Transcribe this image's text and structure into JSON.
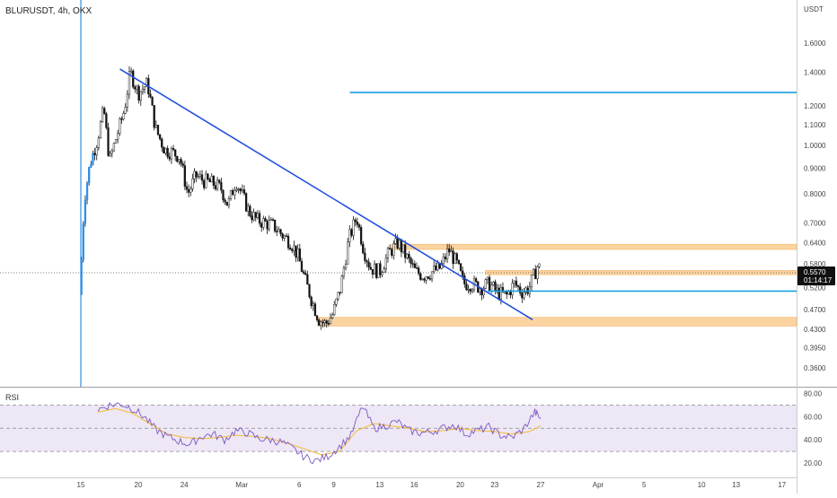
{
  "header": {
    "symbol_line": "BLURUSDT, 4h, OKX"
  },
  "colors": {
    "up": "#ffffff",
    "down": "#111111",
    "wick": "#111111",
    "candle_border": "#222222",
    "spike": "#2f8fe6",
    "trendline": "#2450e0",
    "hline": "#1aa0e0",
    "zone": "#fbd3a0",
    "zone_border": "#f5b766",
    "rsi_line": "#7e57c2",
    "rsi_ma": "#f0c040",
    "rsi_band": "#ede7f6",
    "price_tag_bg": "#111111",
    "price_tag_fg": "#ffffff"
  },
  "chart_data": [
    {
      "type": "candlestick",
      "title": "BLURUSDT, 4h, OKX",
      "price_axis_unit": "USDT",
      "y_scale": "log",
      "ylim": [
        0.33,
        1.95
      ],
      "y_tick_labels": [
        "1.6000",
        "1.4000",
        "1.2000",
        "1.1000",
        "1.0000",
        "0.9000",
        "0.8000",
        "0.7000",
        "0.6400",
        "0.5800",
        "0.5200",
        "0.4700",
        "0.4300",
        "0.3950",
        "0.3600"
      ],
      "x_tick_labels": [
        "15",
        "20",
        "24",
        "Mar",
        "6",
        "9",
        "13",
        "16",
        "20",
        "23",
        "27",
        "Apr",
        "5",
        "10",
        "13",
        "17"
      ],
      "x_ticks": [
        {
          "label": "15",
          "d": 0
        },
        {
          "label": "20",
          "d": 5
        },
        {
          "label": "24",
          "d": 9
        },
        {
          "label": "Mar",
          "d": 14
        },
        {
          "label": "6",
          "d": 19
        },
        {
          "label": "9",
          "d": 22
        },
        {
          "label": "13",
          "d": 26
        },
        {
          "label": "16",
          "d": 29
        },
        {
          "label": "20",
          "d": 33
        },
        {
          "label": "23",
          "d": 36
        },
        {
          "label": "27",
          "d": 40
        },
        {
          "label": "Apr",
          "d": 45
        },
        {
          "label": "5",
          "d": 49
        },
        {
          "label": "10",
          "d": 54
        },
        {
          "label": "13",
          "d": 57
        },
        {
          "label": "17",
          "d": 61
        }
      ],
      "current_price": {
        "value": "0.5570",
        "countdown": "01:14:17"
      },
      "series": {
        "close_path": [
          [
            0.0,
            0.56
          ],
          [
            0.3,
            0.78
          ],
          [
            0.8,
            0.92
          ],
          [
            1.4,
            1.02
          ],
          [
            2.0,
            1.18
          ],
          [
            2.5,
            0.93
          ],
          [
            3.2,
            1.06
          ],
          [
            3.8,
            1.18
          ],
          [
            4.3,
            1.4
          ],
          [
            5.0,
            1.27
          ],
          [
            5.8,
            1.33
          ],
          [
            6.5,
            1.08
          ],
          [
            7.3,
            0.98
          ],
          [
            7.9,
            0.97
          ],
          [
            8.6,
            0.95
          ],
          [
            9.3,
            0.8
          ],
          [
            10.0,
            0.87
          ],
          [
            10.7,
            0.85
          ],
          [
            11.5,
            0.84
          ],
          [
            12.2,
            0.82
          ],
          [
            12.8,
            0.76
          ],
          [
            13.5,
            0.85
          ],
          [
            14.0,
            0.8
          ],
          [
            14.6,
            0.74
          ],
          [
            15.3,
            0.71
          ],
          [
            16.1,
            0.7
          ],
          [
            16.8,
            0.69
          ],
          [
            17.6,
            0.66
          ],
          [
            18.3,
            0.64
          ],
          [
            18.9,
            0.6
          ],
          [
            19.5,
            0.54
          ],
          [
            20.1,
            0.49
          ],
          [
            20.7,
            0.45
          ],
          [
            21.3,
            0.44
          ],
          [
            21.9,
            0.46
          ],
          [
            22.6,
            0.52
          ],
          [
            23.3,
            0.65
          ],
          [
            24.0,
            0.72
          ],
          [
            24.6,
            0.62
          ],
          [
            25.2,
            0.57
          ],
          [
            26.0,
            0.56
          ],
          [
            26.8,
            0.61
          ],
          [
            27.6,
            0.64
          ],
          [
            28.3,
            0.6
          ],
          [
            29.1,
            0.56
          ],
          [
            29.8,
            0.55
          ],
          [
            30.6,
            0.56
          ],
          [
            31.3,
            0.57
          ],
          [
            32.0,
            0.62
          ],
          [
            32.7,
            0.58
          ],
          [
            33.3,
            0.53
          ],
          [
            34.0,
            0.53
          ],
          [
            34.8,
            0.52
          ],
          [
            35.5,
            0.53
          ],
          [
            36.2,
            0.51
          ],
          [
            37.0,
            0.5
          ],
          [
            37.7,
            0.53
          ],
          [
            38.4,
            0.51
          ],
          [
            39.0,
            0.52
          ],
          [
            39.8,
            0.58
          ],
          [
            40.0,
            0.557
          ]
        ],
        "note": "approximate close path used to synthesize candles; x = days from Feb 15"
      },
      "drawings": {
        "trendline": [
          [
            3.4,
            1.42
          ],
          [
            39.3,
            0.449
          ]
        ],
        "hline_top": {
          "y": 1.275,
          "x_from": 23.4
        },
        "hline_support": {
          "y": 0.512,
          "x_from": 35.4
        },
        "zone_upper": {
          "y_top": 0.635,
          "y_bot": 0.62,
          "x_from": 27.0
        },
        "zone_mid": {
          "y_top": 0.563,
          "y_bot": 0.552,
          "x_from": 35.2
        },
        "zone_low": {
          "y_top": 0.454,
          "y_bot": 0.436,
          "x_from": 20.6
        },
        "vertical_line_day": 0
      }
    },
    {
      "type": "line",
      "title": "RSI",
      "ylim": [
        10,
        85
      ],
      "y_tick_labels": [
        "80.00",
        "60.00",
        "40.00",
        "20.00"
      ],
      "band": [
        30,
        70
      ],
      "mid": 50,
      "series_path": [
        [
          1.5,
          66
        ],
        [
          2.5,
          70
        ],
        [
          3.5,
          71
        ],
        [
          4.5,
          67
        ],
        [
          5.5,
          60
        ],
        [
          6.5,
          49
        ],
        [
          7.5,
          43
        ],
        [
          8.5,
          39
        ],
        [
          9.5,
          36
        ],
        [
          10.5,
          43
        ],
        [
          11.5,
          45
        ],
        [
          12.5,
          40
        ],
        [
          13.5,
          48
        ],
        [
          14.5,
          46
        ],
        [
          15.5,
          41
        ],
        [
          16.5,
          40
        ],
        [
          17.5,
          38
        ],
        [
          18.5,
          32
        ],
        [
          19.5,
          25
        ],
        [
          20.5,
          22
        ],
        [
          21.5,
          26
        ],
        [
          22.5,
          34
        ],
        [
          23.5,
          44
        ],
        [
          24.5,
          69
        ],
        [
          25.5,
          50
        ],
        [
          26.5,
          52
        ],
        [
          27.5,
          56
        ],
        [
          28.5,
          48
        ],
        [
          29.5,
          46
        ],
        [
          30.5,
          47
        ],
        [
          31.5,
          50
        ],
        [
          32.5,
          53
        ],
        [
          33.5,
          45
        ],
        [
          34.5,
          48
        ],
        [
          35.5,
          51
        ],
        [
          36.5,
          44
        ],
        [
          37.5,
          42
        ],
        [
          38.5,
          49
        ],
        [
          39.5,
          64
        ],
        [
          40.0,
          58
        ]
      ],
      "ma_path": [
        [
          1.5,
          64
        ],
        [
          3.0,
          67
        ],
        [
          4.5,
          63
        ],
        [
          6.0,
          54
        ],
        [
          7.5,
          45
        ],
        [
          9.0,
          42
        ],
        [
          10.5,
          41
        ],
        [
          12.0,
          42
        ],
        [
          13.5,
          44
        ],
        [
          15.0,
          43
        ],
        [
          16.5,
          41
        ],
        [
          18.0,
          37
        ],
        [
          19.5,
          32
        ],
        [
          21.0,
          27
        ],
        [
          22.5,
          30
        ],
        [
          24.0,
          48
        ],
        [
          25.5,
          54
        ],
        [
          27.0,
          52
        ],
        [
          28.5,
          50
        ],
        [
          30.0,
          47
        ],
        [
          31.5,
          48
        ],
        [
          33.0,
          50
        ],
        [
          34.5,
          48
        ],
        [
          36.0,
          47
        ],
        [
          37.5,
          45
        ],
        [
          39.0,
          47
        ],
        [
          40.0,
          52
        ]
      ]
    }
  ]
}
